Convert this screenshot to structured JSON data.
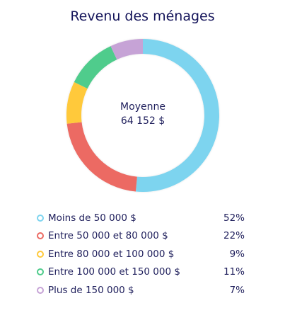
{
  "header": {
    "title": "Revenu des ménages"
  },
  "center": {
    "caption": "Moyenne",
    "value": "64 152 $"
  },
  "chart_data": {
    "type": "pie",
    "title": "Revenu des ménages",
    "categories": [
      "Moins de 50 000 $",
      "Entre 50 000 et 80 000 $",
      "Entre 80 000 et 100 000 $",
      "Entre 100 000 et 150 000 $",
      "Plus de 150 000 $"
    ],
    "values": [
      52,
      22,
      9,
      11,
      7
    ],
    "value_labels": [
      "52%",
      "22%",
      "9%",
      "11%",
      "7%"
    ],
    "colors": [
      "#7dd4ef",
      "#ec6a63",
      "#ffc93a",
      "#4fcc8c",
      "#c6a3d6"
    ],
    "legend": "bottom"
  }
}
